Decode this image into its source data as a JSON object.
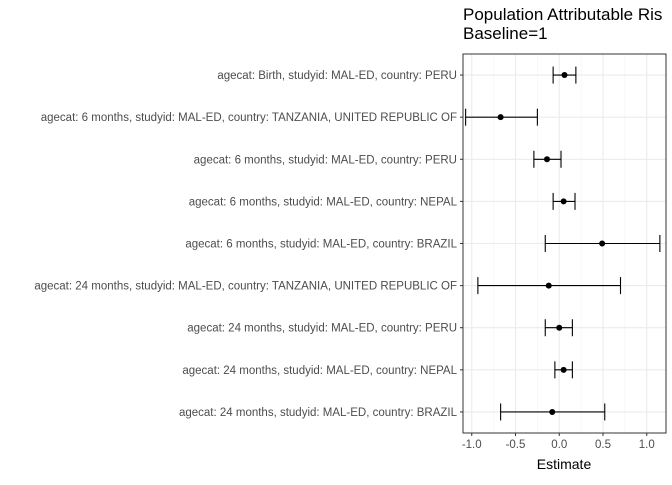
{
  "chart_data": {
    "type": "forest",
    "title": "Population Attributable Ris",
    "subtitle": "Baseline=1",
    "xlabel": "Estimate",
    "ylabel": "",
    "xlim": [
      -1.1,
      1.22
    ],
    "x_ticks": [
      -1.0,
      -0.5,
      0.0,
      0.5,
      1.0
    ],
    "x_tick_labels": [
      "-1.0",
      "-0.5",
      "0.0",
      "0.5",
      "1.0"
    ],
    "grid": true,
    "legend": "none",
    "rows": [
      {
        "label": "agecat: Birth, studyid: MAL-ED, country: PERU",
        "estimate": 0.06,
        "lower": -0.07,
        "upper": 0.19
      },
      {
        "label": "agecat: 6 months, studyid: MAL-ED, country: TANZANIA, UNITED REPUBLIC OF",
        "estimate": -0.67,
        "lower": -1.07,
        "upper": -0.25
      },
      {
        "label": "agecat: 6 months, studyid: MAL-ED, country: PERU",
        "estimate": -0.14,
        "lower": -0.29,
        "upper": 0.02
      },
      {
        "label": "agecat: 6 months, studyid: MAL-ED, country: NEPAL",
        "estimate": 0.05,
        "lower": -0.07,
        "upper": 0.18
      },
      {
        "label": "agecat: 6 months, studyid: MAL-ED, country: BRAZIL",
        "estimate": 0.49,
        "lower": -0.16,
        "upper": 1.15
      },
      {
        "label": "agecat: 24 months, studyid: MAL-ED, country: TANZANIA, UNITED REPUBLIC OF",
        "estimate": -0.12,
        "lower": -0.93,
        "upper": 0.7
      },
      {
        "label": "agecat: 24 months, studyid: MAL-ED, country: PERU",
        "estimate": 0.0,
        "lower": -0.16,
        "upper": 0.15
      },
      {
        "label": "agecat: 24 months, studyid: MAL-ED, country: NEPAL",
        "estimate": 0.05,
        "lower": -0.05,
        "upper": 0.15
      },
      {
        "label": "agecat: 24 months, studyid: MAL-ED, country: BRAZIL",
        "estimate": -0.08,
        "lower": -0.67,
        "upper": 0.52
      }
    ]
  }
}
